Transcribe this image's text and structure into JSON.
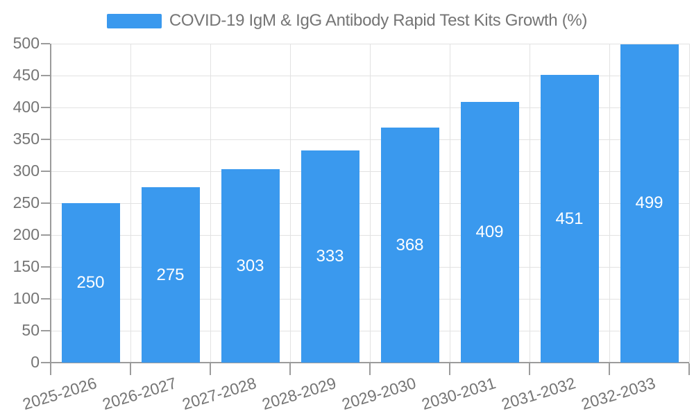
{
  "colors": {
    "bar": "#3a99ee",
    "axis_line": "#9b9b9b",
    "grid_line": "#e2e2e2",
    "axis_text": "#757575",
    "title_text": "#757575",
    "value_label": "#ffffff",
    "background": "#ffffff"
  },
  "legend": {
    "label": "COVID-19 IgM & IgG Antibody Rapid Test Kits Growth (%)"
  },
  "chart_data": {
    "type": "bar",
    "title": "COVID-19 IgM & IgG Antibody Rapid Test Kits Growth (%)",
    "categories": [
      "2025-2026",
      "2026-2027",
      "2027-2028",
      "2028-2029",
      "2029-2030",
      "2030-2031",
      "2031-2032",
      "2032-2033"
    ],
    "values": [
      250,
      275,
      303,
      333,
      368,
      409,
      451,
      499
    ],
    "xlabel": "",
    "ylabel": "",
    "ylim": [
      0,
      500
    ],
    "ytick_interval": 50,
    "grid": true,
    "legend_position": "top",
    "value_labels": "inside-center",
    "x_label_rotation_deg": -17
  }
}
